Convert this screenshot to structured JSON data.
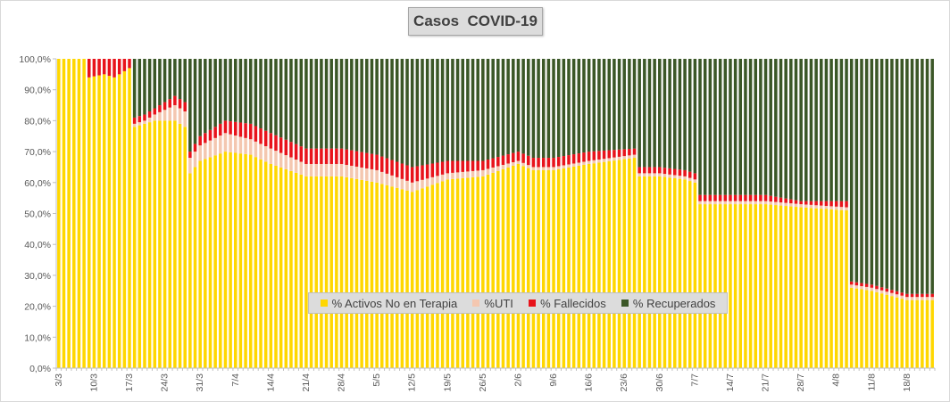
{
  "colors": {
    "activos": "#ffd700",
    "uti": "#f4c7b0",
    "fallecidos": "#e8131b",
    "recuperados": "#3b5727",
    "gap": "#ffffff",
    "axis": "#bfbfbf",
    "text": "#595959"
  },
  "chart_data": {
    "type": "bar",
    "stacked": true,
    "title": "Casos  COVID-19",
    "xlabel": "",
    "ylabel": "",
    "ylim": [
      0,
      100
    ],
    "grid": false,
    "legend_position": "center-bottom",
    "y_tick_labels": [
      "0,0%",
      "10,0%",
      "20,0%",
      "30,0%",
      "40,0%",
      "50,0%",
      "60,0%",
      "70,0%",
      "80,0%",
      "90,0%",
      "100,0%"
    ],
    "y_tick_values": [
      0,
      10,
      20,
      30,
      40,
      50,
      60,
      70,
      80,
      90,
      100
    ],
    "x_tick_labels": [
      "3/3",
      "10/3",
      "17/3",
      "24/3",
      "31/3",
      "7/4",
      "14/4",
      "21/4",
      "28/4",
      "5/5",
      "12/5",
      "19/5",
      "26/5",
      "2/6",
      "9/6",
      "16/6",
      "23/6",
      "30/6",
      "7/7",
      "14/7",
      "21/7",
      "28/7",
      "4/8",
      "11/8",
      "18/8"
    ],
    "series_names": [
      "% Activos No en Terapia",
      "%UTI",
      "% Fallecidos",
      "% Recuperados"
    ],
    "categories_note": "daily from 3/3 to 23/8",
    "first_day": "3/3",
    "num_days": 174,
    "keyframes": [
      {
        "day": "3/3",
        "activos": 100,
        "uti": 0,
        "fallecidos": 0
      },
      {
        "day": "8/3",
        "activos": 100,
        "uti": 0,
        "fallecidos": 0
      },
      {
        "day": "9/3",
        "activos": 94,
        "uti": 0,
        "fallecidos": 6
      },
      {
        "day": "12/3",
        "activos": 95,
        "uti": 0,
        "fallecidos": 5
      },
      {
        "day": "14/3",
        "activos": 94,
        "uti": 0,
        "fallecidos": 6
      },
      {
        "day": "17/3",
        "activos": 97,
        "uti": 0,
        "fallecidos": 3
      },
      {
        "day": "18/3",
        "activos": 78,
        "uti": 1,
        "fallecidos": 2
      },
      {
        "day": "20/3",
        "activos": 79,
        "uti": 1,
        "fallecidos": 2
      },
      {
        "day": "22/3",
        "activos": 80,
        "uti": 2,
        "fallecidos": 2
      },
      {
        "day": "26/3",
        "activos": 80,
        "uti": 5,
        "fallecidos": 3
      },
      {
        "day": "28/3",
        "activos": 78,
        "uti": 5,
        "fallecidos": 3
      },
      {
        "day": "29/3",
        "activos": 63,
        "uti": 5,
        "fallecidos": 2
      },
      {
        "day": "31/3",
        "activos": 67,
        "uti": 5,
        "fallecidos": 3
      },
      {
        "day": "5/4",
        "activos": 70,
        "uti": 6,
        "fallecidos": 4
      },
      {
        "day": "10/4",
        "activos": 69,
        "uti": 5,
        "fallecidos": 5
      },
      {
        "day": "14/4",
        "activos": 66,
        "uti": 5,
        "fallecidos": 5
      },
      {
        "day": "21/4",
        "activos": 62,
        "uti": 4,
        "fallecidos": 5
      },
      {
        "day": "28/4",
        "activos": 62,
        "uti": 4,
        "fallecidos": 5
      },
      {
        "day": "5/5",
        "activos": 60,
        "uti": 4,
        "fallecidos": 5
      },
      {
        "day": "12/5",
        "activos": 57,
        "uti": 3,
        "fallecidos": 5
      },
      {
        "day": "19/5",
        "activos": 61,
        "uti": 2,
        "fallecidos": 4
      },
      {
        "day": "26/5",
        "activos": 62,
        "uti": 2,
        "fallecidos": 3
      },
      {
        "day": "2/6",
        "activos": 66,
        "uti": 1,
        "fallecidos": 3
      },
      {
        "day": "5/6",
        "activos": 64,
        "uti": 1,
        "fallecidos": 3
      },
      {
        "day": "9/6",
        "activos": 64,
        "uti": 1,
        "fallecidos": 3
      },
      {
        "day": "16/6",
        "activos": 66,
        "uti": 1,
        "fallecidos": 3
      },
      {
        "day": "25/6",
        "activos": 68,
        "uti": 1,
        "fallecidos": 2
      },
      {
        "day": "26/6",
        "activos": 62,
        "uti": 1,
        "fallecidos": 2
      },
      {
        "day": "30/6",
        "activos": 62,
        "uti": 1,
        "fallecidos": 2
      },
      {
        "day": "5/7",
        "activos": 61,
        "uti": 1,
        "fallecidos": 2
      },
      {
        "day": "7/7",
        "activos": 60,
        "uti": 1,
        "fallecidos": 2
      },
      {
        "day": "8/7",
        "activos": 53,
        "uti": 1,
        "fallecidos": 2
      },
      {
        "day": "14/7",
        "activos": 53,
        "uti": 1,
        "fallecidos": 2
      },
      {
        "day": "21/7",
        "activos": 53,
        "uti": 1,
        "fallecidos": 2
      },
      {
        "day": "28/7",
        "activos": 52,
        "uti": 1,
        "fallecidos": 1
      },
      {
        "day": "6/8",
        "activos": 51,
        "uti": 1,
        "fallecidos": 2
      },
      {
        "day": "7/8",
        "activos": 26,
        "uti": 1,
        "fallecidos": 1
      },
      {
        "day": "11/8",
        "activos": 25,
        "uti": 1,
        "fallecidos": 1
      },
      {
        "day": "18/8",
        "activos": 22,
        "uti": 1,
        "fallecidos": 1
      },
      {
        "day": "23/8",
        "activos": 22,
        "uti": 1,
        "fallecidos": 1
      }
    ],
    "recuperados_rule": "100 minus the other three series"
  }
}
